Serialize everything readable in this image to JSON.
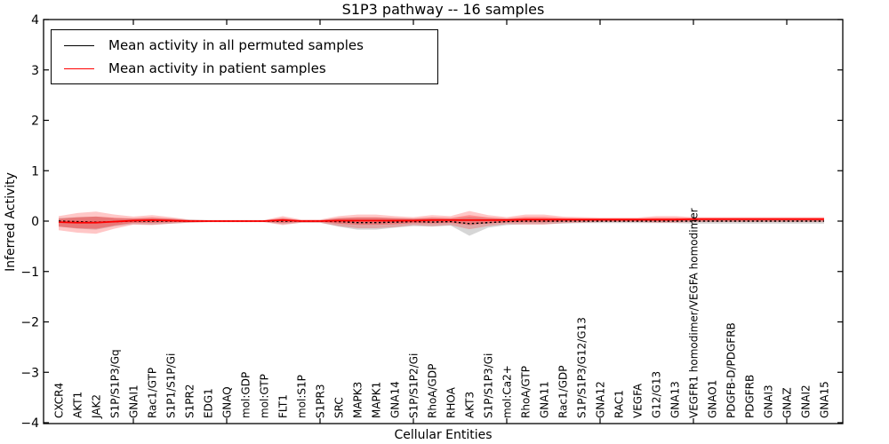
{
  "chart_data": {
    "type": "line",
    "title": "S1P3 pathway -- 16 samples",
    "xlabel": "Cellular Entities",
    "ylabel": "Inferred Activity",
    "ylim": [
      -4,
      4
    ],
    "ytick_labels": [
      "4",
      "3",
      "2",
      "1",
      "0",
      "−1",
      "−2",
      "−3",
      "−4"
    ],
    "ytick_values": [
      4,
      3,
      2,
      1,
      0,
      -1,
      -2,
      -3,
      -4
    ],
    "grid": false,
    "legend_position": "upper left",
    "legend": [
      {
        "label": "Mean activity in all permuted samples",
        "color": "#000000"
      },
      {
        "label": "Mean activity in patient samples",
        "color": "#ff0000"
      }
    ],
    "categories": [
      "CXCR4",
      "AKT1",
      "JAK2",
      "S1P/S1P3/Gq",
      "GNAI1",
      "Rac1/GTP",
      "S1P1/S1P/Gi",
      "S1PR2",
      "EDG1",
      "GNAQ",
      "mol:GDP",
      "mol:GTP",
      "FLT1",
      "mol:S1P",
      "S1PR3",
      "SRC",
      "MAPK3",
      "MAPK1",
      "GNA14",
      "S1P/S1P2/Gi",
      "RhoA/GDP",
      "RHOA",
      "AKT3",
      "S1P/S1P3/Gi",
      "mol:Ca2+",
      "RhoA/GTP",
      "GNA11",
      "Rac1/GDP",
      "S1P/S1P3/G12/G13",
      "GNA12",
      "RAC1",
      "VEGFA",
      "G12/G13",
      "GNA13",
      "VEGFR1 homodimer/VEGFA homodimer",
      "GNAO1",
      "PDGFB-D/PDGFRB",
      "PDGFRB",
      "GNAI3",
      "GNAZ",
      "GNAI2",
      "GNA15"
    ],
    "series": [
      {
        "name": "permuted_mean",
        "legend": "Mean activity in all permuted samples",
        "color": "#000000",
        "line": "dashed",
        "values": [
          0,
          -0.01,
          -0.02,
          -0.01,
          0,
          0,
          0,
          0,
          0,
          0,
          0,
          0,
          0,
          0,
          0,
          -0.01,
          -0.03,
          -0.03,
          -0.02,
          -0.01,
          -0.02,
          -0.01,
          -0.05,
          -0.03,
          -0.01,
          0,
          0,
          0,
          0,
          0,
          0,
          0,
          0,
          0,
          0,
          0,
          0,
          0,
          0,
          0,
          0,
          0
        ]
      },
      {
        "name": "patient_mean",
        "legend": "Mean activity in patient samples",
        "color": "#ff0000",
        "line": "solid",
        "values": [
          -0.02,
          -0.03,
          -0.03,
          -0.01,
          0.01,
          0.02,
          0.01,
          0,
          0,
          0,
          0,
          0,
          0.02,
          0,
          0,
          0.01,
          0.01,
          0.01,
          0.01,
          0.01,
          0.02,
          0.02,
          0.02,
          0.02,
          0.02,
          0.03,
          0.03,
          0.03,
          0.03,
          0.03,
          0.03,
          0.03,
          0.03,
          0.03,
          0.04,
          0.04,
          0.04,
          0.04,
          0.04,
          0.04,
          0.04,
          0.04
        ]
      }
    ],
    "bands": [
      {
        "name": "permuted_spread",
        "color": "#777777",
        "opacity": 0.3,
        "upper": [
          0.06,
          0.08,
          0.09,
          0.06,
          0.05,
          0.06,
          0.05,
          0.03,
          0.02,
          0.02,
          0.02,
          0.02,
          0.05,
          0.02,
          0.02,
          0.06,
          0.07,
          0.07,
          0.06,
          0.05,
          0.06,
          0.05,
          0.08,
          0.06,
          0.05,
          0.05,
          0.05,
          0.04,
          0.03,
          0.03,
          0.03,
          0.03,
          0.03,
          0.03,
          0.03,
          0.03,
          0.03,
          0.03,
          0.03,
          0.03,
          0.03,
          0.03
        ],
        "lower": [
          -0.11,
          -0.15,
          -0.17,
          -0.1,
          -0.06,
          -0.07,
          -0.05,
          -0.03,
          -0.02,
          -0.02,
          -0.02,
          -0.02,
          -0.06,
          -0.03,
          -0.03,
          -0.11,
          -0.17,
          -0.17,
          -0.13,
          -0.1,
          -0.11,
          -0.09,
          -0.29,
          -0.13,
          -0.08,
          -0.06,
          -0.06,
          -0.05,
          -0.04,
          -0.04,
          -0.04,
          -0.04,
          -0.04,
          -0.04,
          -0.05,
          -0.05,
          -0.05,
          -0.05,
          -0.05,
          -0.05,
          -0.05,
          -0.05
        ]
      },
      {
        "name": "patient_spread_outer",
        "color": "#ff0000",
        "opacity": 0.22,
        "upper": [
          0.1,
          0.16,
          0.19,
          0.13,
          0.09,
          0.12,
          0.08,
          0.03,
          0.02,
          0.02,
          0.02,
          0.02,
          0.1,
          0.03,
          0.03,
          0.1,
          0.13,
          0.13,
          0.1,
          0.08,
          0.12,
          0.1,
          0.2,
          0.12,
          0.08,
          0.13,
          0.13,
          0.09,
          0.08,
          0.07,
          0.07,
          0.07,
          0.1,
          0.1,
          0.08,
          0.08,
          0.08,
          0.08,
          0.08,
          0.08,
          0.08,
          0.08
        ],
        "lower": [
          -0.18,
          -0.23,
          -0.25,
          -0.15,
          -0.07,
          -0.08,
          -0.05,
          -0.03,
          -0.02,
          -0.02,
          -0.02,
          -0.02,
          -0.08,
          -0.03,
          -0.03,
          -0.1,
          -0.14,
          -0.14,
          -0.12,
          -0.08,
          -0.1,
          -0.08,
          -0.16,
          -0.1,
          -0.06,
          -0.07,
          -0.07,
          -0.04,
          -0.03,
          -0.02,
          -0.02,
          -0.02,
          -0.03,
          -0.03,
          -0.02,
          -0.02,
          -0.02,
          -0.02,
          -0.02,
          -0.02,
          -0.02,
          -0.02
        ]
      },
      {
        "name": "patient_spread_inner",
        "color": "#ff0000",
        "opacity": 0.28,
        "scale_of": "patient_spread_outer",
        "scale": 0.55
      }
    ]
  }
}
